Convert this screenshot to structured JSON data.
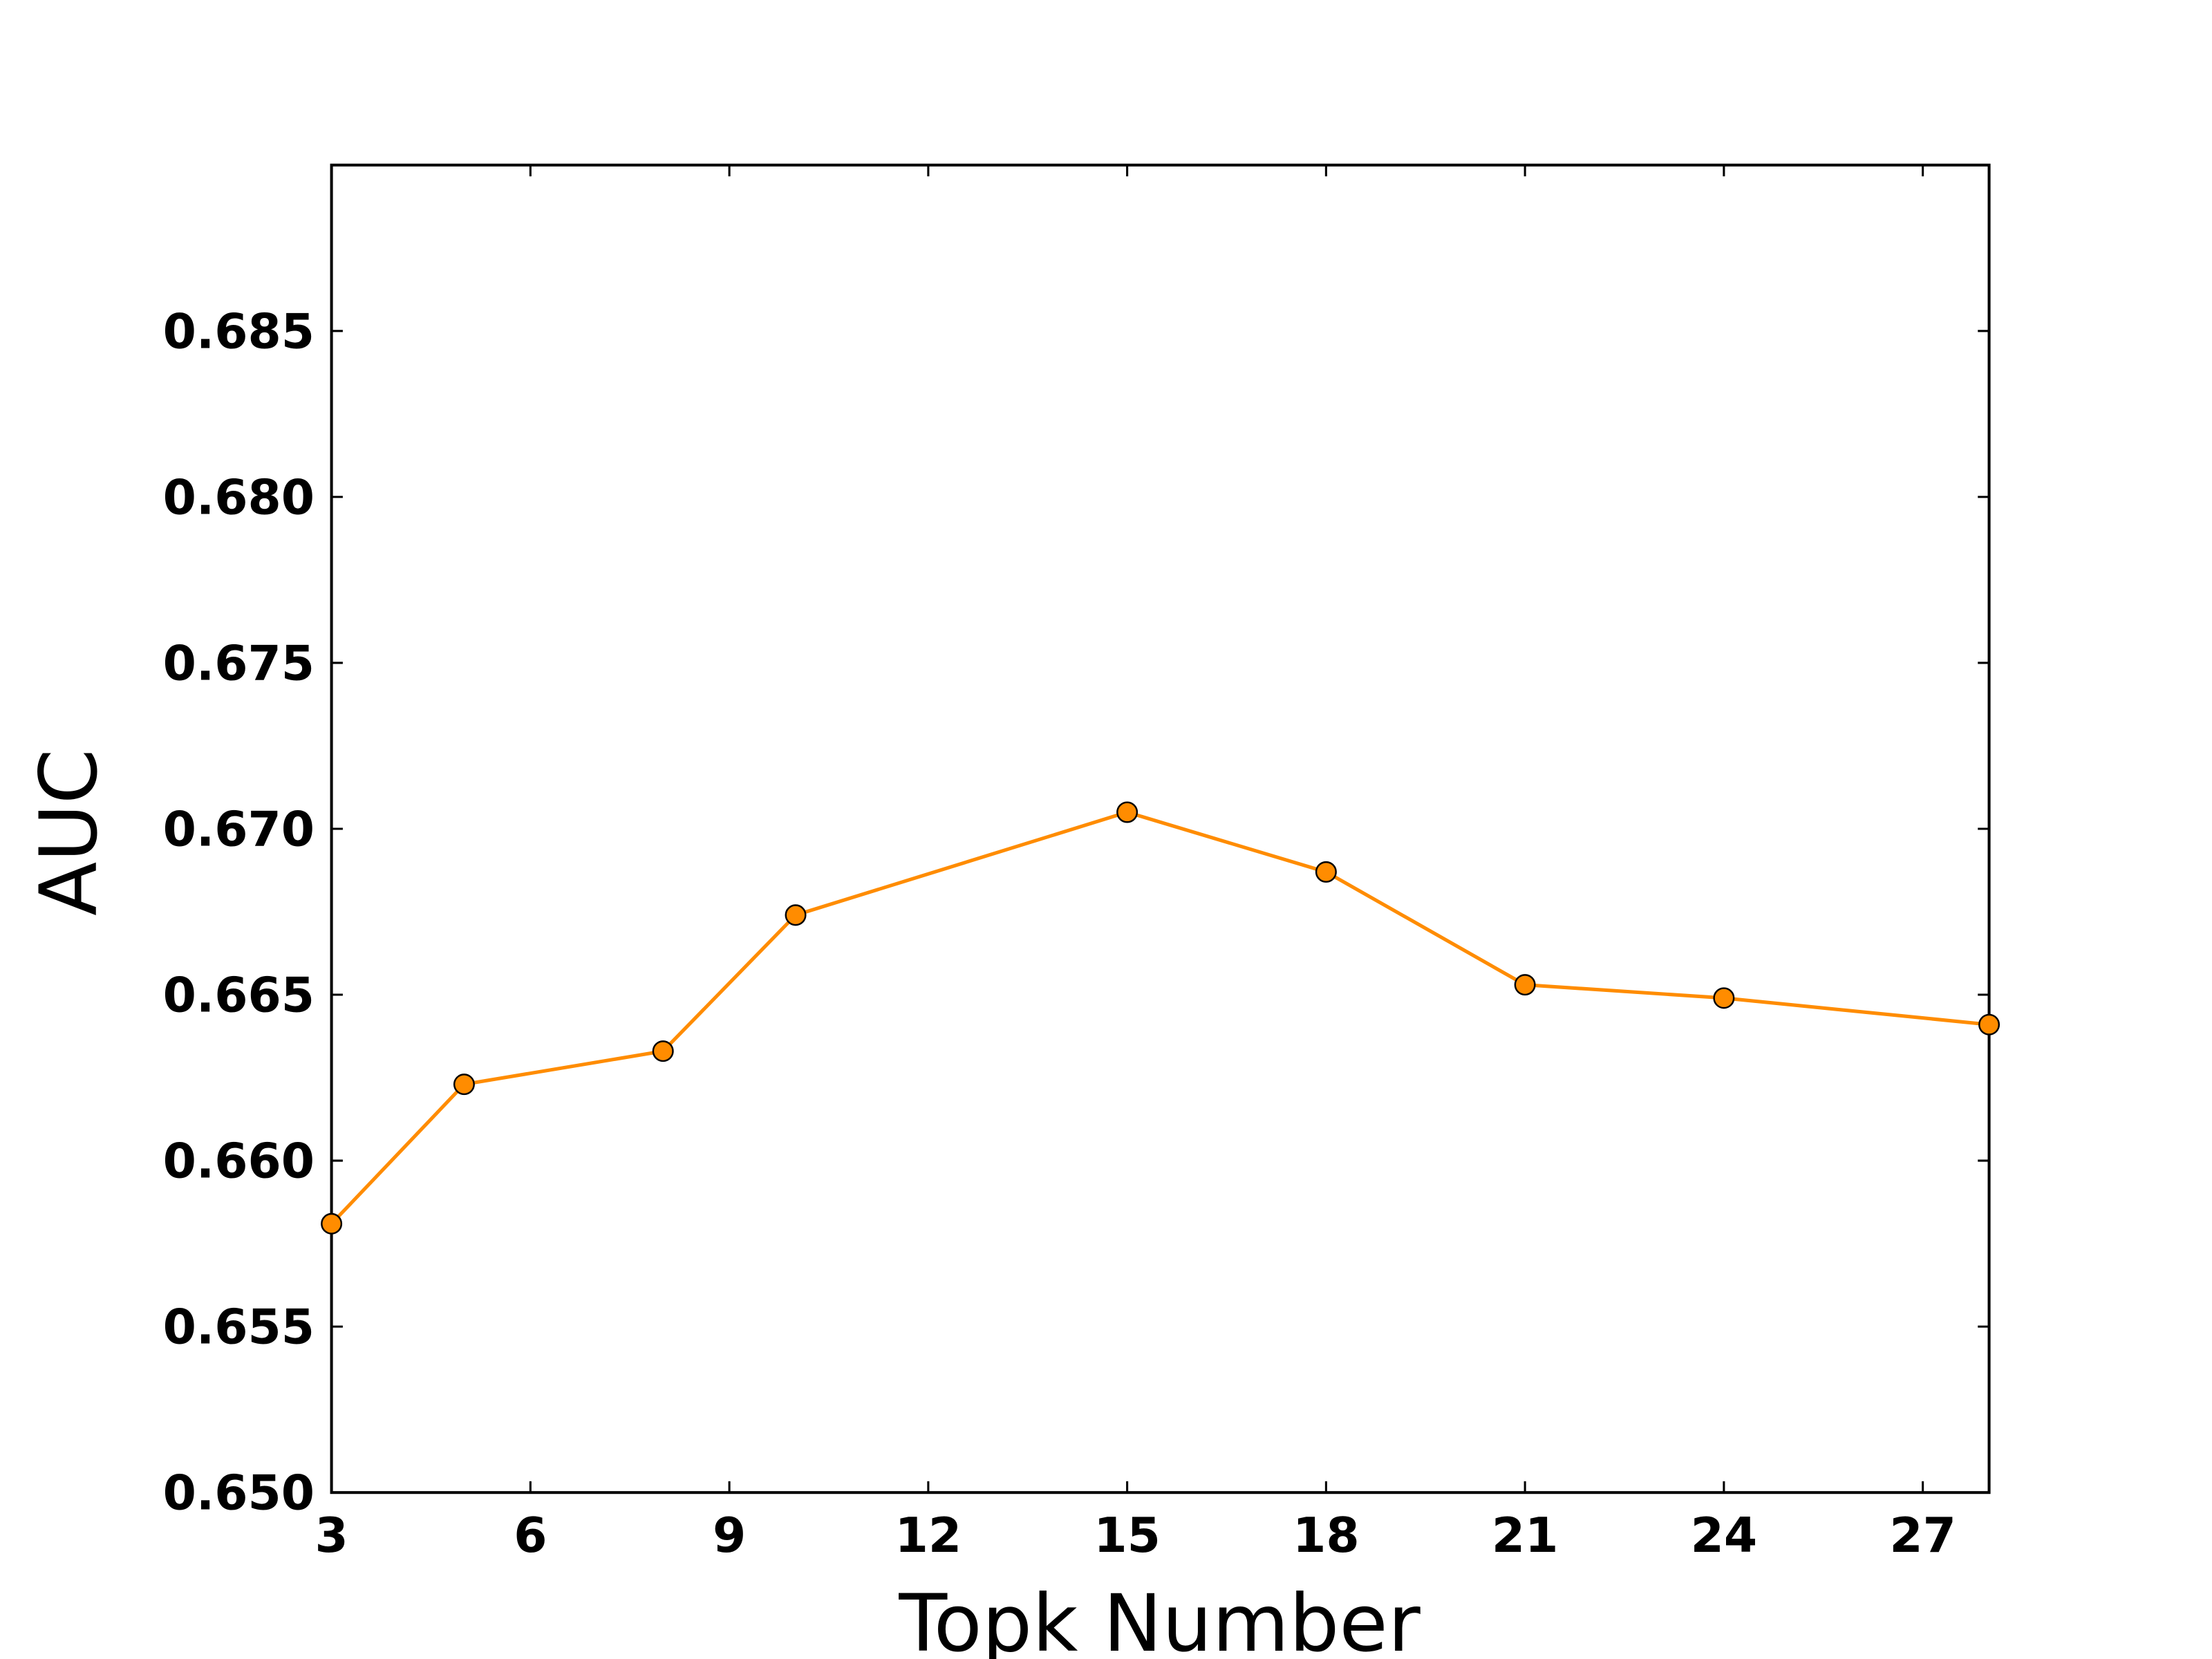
{
  "chart_data": {
    "type": "line",
    "xlabel": "Topk Number",
    "ylabel": "AUC",
    "x": [
      3,
      5,
      8,
      10,
      15,
      18,
      21,
      24,
      28
    ],
    "series": [
      {
        "color": "#ff8c00",
        "marker_edge": "#000000",
        "values": [
          0.6581,
          0.6623,
          0.6633,
          0.6674,
          0.6705,
          0.6687,
          0.6653,
          0.6649,
          0.6641
        ]
      }
    ],
    "xlim": [
      3,
      28
    ],
    "xticks": [
      3,
      6,
      9,
      12,
      15,
      18,
      21,
      24,
      27
    ],
    "ylim": [
      0.65,
      0.69
    ],
    "yticks": [
      {
        "value": 0.65,
        "label": "0.650"
      },
      {
        "value": 0.655,
        "label": "0.655"
      },
      {
        "value": 0.66,
        "label": "0.660"
      },
      {
        "value": 0.665,
        "label": "0.665"
      },
      {
        "value": 0.67,
        "label": "0.670"
      },
      {
        "value": 0.675,
        "label": "0.675"
      },
      {
        "value": 0.68,
        "label": "0.680"
      },
      {
        "value": 0.685,
        "label": "0.685"
      }
    ]
  }
}
